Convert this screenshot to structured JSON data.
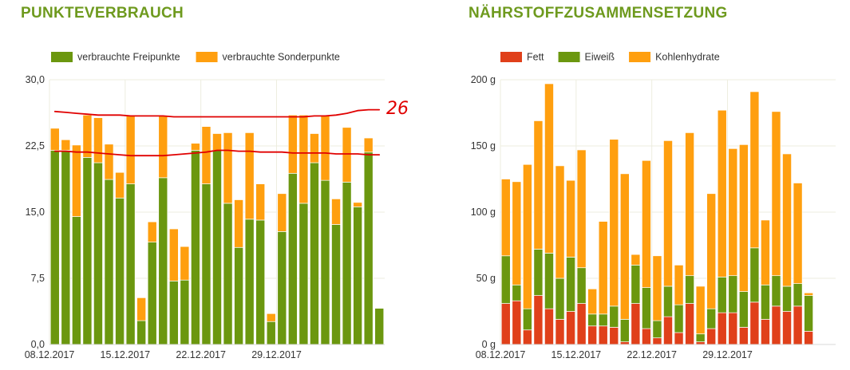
{
  "colors": {
    "title": "#6e9a1e",
    "green": "#6b970f",
    "orange": "#ff9f0f",
    "red": "#e0401a",
    "annotation": "#e00000",
    "grid": "#ededdf"
  },
  "left": {
    "title": "PUNKTEVERBRAUCH",
    "annotation_text": "26"
  },
  "right": {
    "title": "NÄHRSTOFFZUSAMMENSETZUNG"
  },
  "chart_data": [
    {
      "type": "bar",
      "stacked": true,
      "legend_position": "top-left",
      "grid": true,
      "x": [
        "08.12.2017",
        "09.12.2017",
        "10.12.2017",
        "11.12.2017",
        "12.12.2017",
        "13.12.2017",
        "14.12.2017",
        "15.12.2017",
        "16.12.2017",
        "17.12.2017",
        "18.12.2017",
        "19.12.2017",
        "20.12.2017",
        "21.12.2017",
        "22.12.2017",
        "23.12.2017",
        "24.12.2017",
        "25.12.2017",
        "26.12.2017",
        "27.12.2017",
        "28.12.2017",
        "29.12.2017",
        "30.12.2017",
        "31.12.2017",
        "01.01.2018",
        "02.01.2018",
        "03.01.2018",
        "04.01.2018",
        "05.01.2018",
        "06.01.2018",
        "07.01.2018"
      ],
      "x_tick_labels": [
        "08.12.2017",
        "15.12.2017",
        "22.12.2017",
        "29.12.2017"
      ],
      "x_tick_indices": [
        0,
        7,
        14,
        21
      ],
      "ylim": [
        0,
        30
      ],
      "y_ticks": [
        "0,0",
        "7,5",
        "15,0",
        "22,5",
        "30,0"
      ],
      "series": [
        {
          "name": "verbrauchte Freipunkte",
          "color": "#6b970f",
          "values": [
            22.0,
            22.0,
            14.5,
            21.2,
            20.6,
            18.7,
            16.6,
            18.2,
            2.7,
            11.6,
            18.9,
            7.2,
            7.3,
            22.0,
            18.2,
            22.0,
            16.0,
            11.0,
            14.2,
            14.1,
            2.6,
            12.8,
            19.4,
            16.0,
            20.6,
            18.6,
            13.6,
            18.4,
            15.6,
            21.8,
            4.1
          ]
        },
        {
          "name": "verbrauchte Sonderpunkte",
          "color": "#ff9f0f",
          "values": [
            2.5,
            1.2,
            8.1,
            4.8,
            5.1,
            4.0,
            2.9,
            7.8,
            2.6,
            2.3,
            7.0,
            5.9,
            3.8,
            0.8,
            6.5,
            1.9,
            8.0,
            5.4,
            9.8,
            4.1,
            0.9,
            4.3,
            6.6,
            10.0,
            3.3,
            7.4,
            2.9,
            6.2,
            0.5,
            1.6,
            0
          ]
        }
      ],
      "annotations": [
        {
          "type": "hand-drawn-line",
          "values": [
            26.4,
            26.3,
            26.2,
            26.1,
            26.0,
            26.0,
            26.0,
            25.9,
            25.9,
            25.9,
            25.9,
            25.8,
            25.8,
            25.8,
            25.8,
            25.8,
            25.8,
            25.8,
            25.8,
            25.8,
            25.8,
            25.8,
            25.8,
            25.8,
            25.9,
            25.9,
            26.0,
            26.2,
            26.5,
            26.6,
            26.6
          ]
        },
        {
          "type": "hand-drawn-line",
          "values": [
            21.9,
            21.9,
            21.8,
            21.8,
            21.7,
            21.6,
            21.5,
            21.4,
            21.4,
            21.4,
            21.4,
            21.5,
            21.6,
            21.7,
            21.8,
            22.0,
            22.0,
            21.9,
            21.9,
            21.8,
            21.8,
            21.8,
            21.7,
            21.7,
            21.7,
            21.7,
            21.6,
            21.6,
            21.6,
            21.5,
            21.5
          ]
        }
      ]
    },
    {
      "type": "bar",
      "stacked": true,
      "legend_position": "top-left",
      "grid": true,
      "x": [
        "08.12.2017",
        "09.12.2017",
        "10.12.2017",
        "11.12.2017",
        "12.12.2017",
        "13.12.2017",
        "14.12.2017",
        "15.12.2017",
        "16.12.2017",
        "17.12.2017",
        "18.12.2017",
        "19.12.2017",
        "20.12.2017",
        "21.12.2017",
        "22.12.2017",
        "23.12.2017",
        "24.12.2017",
        "25.12.2017",
        "26.12.2017",
        "27.12.2017",
        "28.12.2017",
        "29.12.2017",
        "30.12.2017",
        "31.12.2017",
        "01.01.2018",
        "02.01.2018",
        "03.01.2018",
        "04.01.2018",
        "05.01.2018",
        "06.01.2018",
        "07.01.2018"
      ],
      "x_tick_labels": [
        "08.12.2017",
        "15.12.2017",
        "22.12.2017",
        "29.12.2017"
      ],
      "x_tick_indices": [
        0,
        7,
        14,
        21
      ],
      "ylim": [
        0,
        200
      ],
      "y_ticks": [
        "0 g",
        "50 g",
        "100 g",
        "150 g",
        "200 g"
      ],
      "series": [
        {
          "name": "Fett",
          "color": "#e0401a",
          "values": [
            31,
            33,
            11,
            37,
            27,
            19,
            25,
            31,
            14,
            14,
            13,
            2,
            31,
            12,
            5,
            21,
            9,
            31,
            2,
            12,
            24,
            24,
            13,
            32,
            19,
            29,
            25,
            29,
            10,
            0,
            0
          ]
        },
        {
          "name": "Eiweiß",
          "color": "#6b970f",
          "values": [
            36,
            12,
            16,
            35,
            42,
            31,
            41,
            27,
            9,
            9,
            16,
            17,
            29,
            31,
            13,
            23,
            21,
            21,
            6,
            15,
            27,
            28,
            27,
            41,
            26,
            23,
            19,
            17,
            27,
            0,
            0
          ]
        },
        {
          "name": "Kohlenhydrate",
          "color": "#ff9f0f",
          "values": [
            58,
            78,
            109,
            97,
            128,
            85,
            58,
            89,
            19,
            70,
            126,
            110,
            8,
            96,
            49,
            110,
            30,
            108,
            36,
            87,
            126,
            96,
            111,
            118,
            49,
            124,
            100,
            76,
            2,
            0,
            0
          ]
        }
      ]
    }
  ]
}
